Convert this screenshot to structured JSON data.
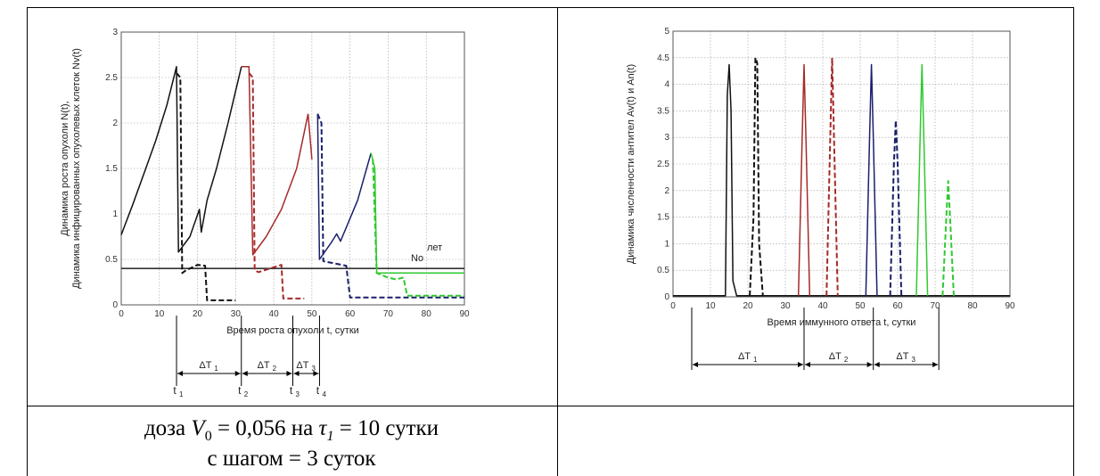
{
  "chart_data": [
    {
      "type": "line",
      "title": "",
      "xlabel": "Время роста опухоли t, сутки",
      "ylabel_lines": [
        "Динамика роста опухоли N(t),",
        "Динамика инфицированных опухолевых клеток Nv(t)"
      ],
      "xlim": [
        0,
        90
      ],
      "ylim": [
        0,
        3
      ],
      "xticks": [
        "0",
        "10",
        "20",
        "30",
        "40",
        "50",
        "60",
        "70",
        "80",
        "90"
      ],
      "yticks": [
        "0",
        "0.5",
        "1",
        "1.5",
        "2",
        "2.5",
        "3"
      ],
      "grid": true,
      "threshold": {
        "y": 0.4,
        "label_main": "No",
        "label_sup": "лет",
        "color": "#333333"
      },
      "series": [
        {
          "color": "#111111",
          "dashed": false,
          "x": [
            0,
            3,
            6,
            9,
            12,
            14.5,
            15,
            18,
            20.5,
            21,
            22.5,
            25,
            28,
            31.5
          ],
          "y": [
            0.77,
            1.1,
            1.45,
            1.8,
            2.2,
            2.62,
            0.58,
            0.75,
            1.05,
            0.8,
            1.15,
            1.5,
            2.0,
            2.62
          ]
        },
        {
          "color": "#111111",
          "dashed": true,
          "x": [
            14.5,
            15.5,
            16,
            17,
            20,
            22,
            22.5,
            30
          ],
          "y": [
            2.55,
            2.5,
            0.35,
            0.38,
            0.44,
            0.43,
            0.05,
            0.05
          ]
        },
        {
          "color": "#a52a2a",
          "dashed": false,
          "x": [
            31.5,
            33.5,
            34.5,
            38,
            42,
            46,
            49
          ],
          "y": [
            2.62,
            2.62,
            0.55,
            0.75,
            1.05,
            1.5,
            2.1
          ]
        },
        {
          "color": "#a52a2a",
          "dashed": true,
          "x": [
            33.5,
            34.5,
            35,
            36,
            42,
            42.5,
            48
          ],
          "y": [
            2.55,
            2.5,
            0.38,
            0.36,
            0.44,
            0.07,
            0.07
          ]
        },
        {
          "color": "#a52a2a",
          "dashed": false,
          "x": [
            49,
            50
          ],
          "y": [
            2.1,
            1.6
          ]
        },
        {
          "color": "#1a1f6b",
          "dashed": false,
          "x": [
            51.5,
            52,
            55,
            56.5,
            57.5,
            62,
            65.5
          ],
          "y": [
            2.1,
            0.5,
            0.68,
            0.78,
            0.7,
            1.15,
            1.67
          ]
        },
        {
          "color": "#1a1f6b",
          "dashed": true,
          "x": [
            51.5,
            52.5,
            53,
            59,
            60,
            75,
            90
          ],
          "y": [
            2.1,
            2.0,
            0.48,
            0.43,
            0.08,
            0.08,
            0.08
          ]
        },
        {
          "color": "#2fc92f",
          "dashed": false,
          "x": [
            65.5,
            66.5,
            67,
            90
          ],
          "y": [
            1.67,
            1.5,
            0.35,
            0.35
          ]
        },
        {
          "color": "#2fc92f",
          "dashed": true,
          "x": [
            66,
            67,
            70,
            72,
            74,
            75,
            90
          ],
          "y": [
            1.6,
            0.35,
            0.3,
            0.28,
            0.3,
            0.1,
            0.1
          ]
        }
      ],
      "intervals": {
        "labels": [
          "ΔT",
          "ΔT",
          "ΔT"
        ],
        "subs": [
          "1",
          "2",
          "3"
        ],
        "t_labels": [
          "t",
          "t",
          "t",
          "t"
        ],
        "t_subs": [
          "1",
          "2",
          "3",
          "4"
        ],
        "x": [
          14.5,
          31.5,
          45,
          52
        ]
      }
    },
    {
      "type": "line",
      "title": "",
      "xlabel": "Время иммунного ответа t, сутки",
      "ylabel_lines": [
        "Динамика численности антител Av(t) и An(t)"
      ],
      "xlim": [
        0,
        90
      ],
      "ylim": [
        0,
        5
      ],
      "xticks": [
        "0",
        "10",
        "20",
        "30",
        "40",
        "50",
        "60",
        "70",
        "80",
        "90"
      ],
      "yticks": [
        "0",
        "0.5",
        "1",
        "1.5",
        "2",
        "2.5",
        "3",
        "3.5",
        "4",
        "4.5",
        "5"
      ],
      "grid": true,
      "series": [
        {
          "color": "#111111",
          "dashed": false,
          "x": [
            0,
            14,
            14.5,
            15,
            15.5,
            16,
            17,
            90
          ],
          "y": [
            0.02,
            0.02,
            3.8,
            4.37,
            3.5,
            0.3,
            0.02,
            0.02
          ]
        },
        {
          "color": "#111111",
          "dashed": true,
          "x": [
            20.5,
            21.5,
            22,
            22.5,
            23,
            24
          ],
          "y": [
            0.02,
            1.5,
            4.5,
            4.4,
            1.0,
            0.02
          ]
        },
        {
          "color": "#a52a2a",
          "dashed": false,
          "x": [
            33.5,
            34.5,
            35,
            35.5,
            36.5
          ],
          "y": [
            0.02,
            3.0,
            4.37,
            3.0,
            0.02
          ]
        },
        {
          "color": "#a52a2a",
          "dashed": true,
          "x": [
            41,
            42,
            42.5,
            43,
            44
          ],
          "y": [
            0.02,
            3.0,
            4.5,
            3.0,
            0.02
          ]
        },
        {
          "color": "#1a1f6b",
          "dashed": false,
          "x": [
            51.5,
            52.5,
            53,
            53.5,
            54.5
          ],
          "y": [
            0.02,
            3.0,
            4.37,
            3.0,
            0.02
          ]
        },
        {
          "color": "#1a1f6b",
          "dashed": true,
          "x": [
            58,
            59,
            59.5,
            60,
            61
          ],
          "y": [
            0.02,
            2.5,
            3.32,
            2.5,
            0.02
          ]
        },
        {
          "color": "#2fc92f",
          "dashed": false,
          "x": [
            65,
            66,
            66.5,
            67,
            68
          ],
          "y": [
            0.02,
            3.0,
            4.37,
            3.0,
            0.02
          ]
        },
        {
          "color": "#2fc92f",
          "dashed": true,
          "x": [
            72,
            73,
            73.5,
            74,
            75
          ],
          "y": [
            0.02,
            1.5,
            2.18,
            1.5,
            0.02
          ]
        }
      ],
      "intervals": {
        "labels": [
          "ΔT",
          "ΔT",
          "ΔT"
        ],
        "subs": [
          "1",
          "2",
          "3"
        ],
        "x": [
          5,
          35,
          53.5,
          71
        ]
      }
    }
  ],
  "caption": {
    "line1_prefix": "доза ",
    "v_symbol": "V",
    "v_sub": "0",
    "line1_mid": " = 0,056 на ",
    "tau_symbol": "τ",
    "tau_sub": "1",
    "line1_suffix": " = 10 сутки",
    "line2": "с шагом = 3 суток"
  }
}
